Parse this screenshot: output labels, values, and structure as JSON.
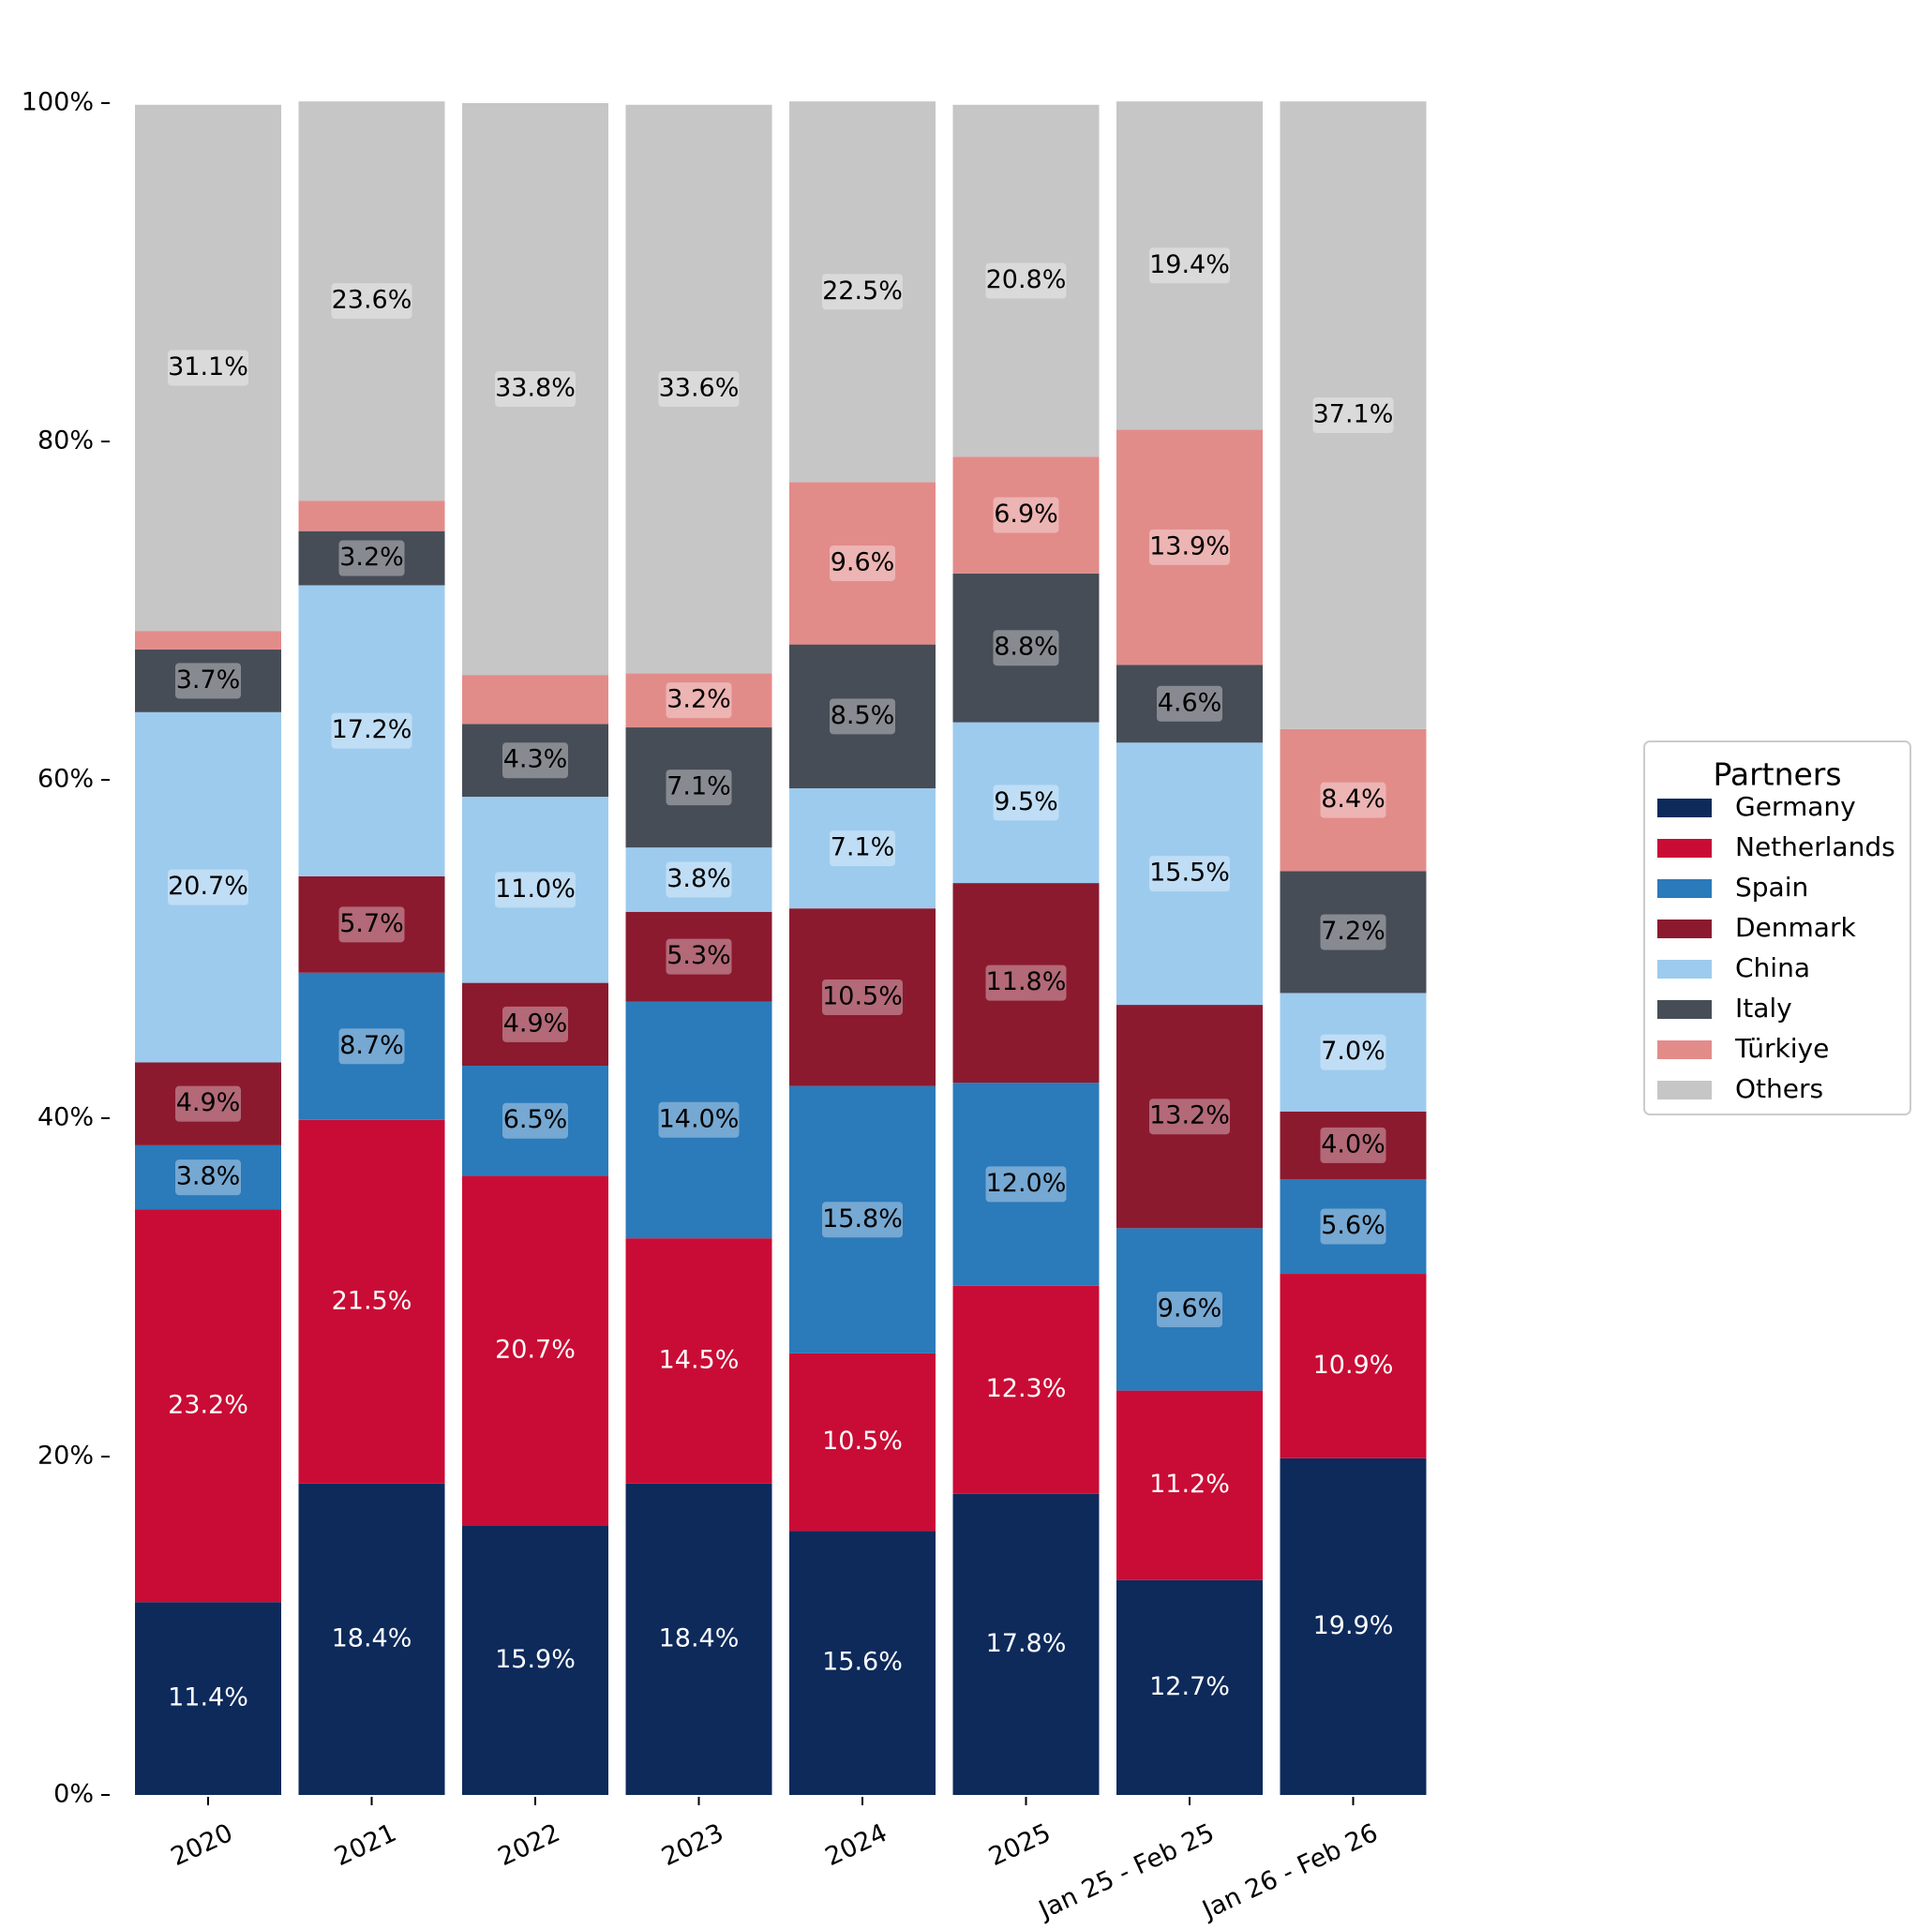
{
  "chart_data": {
    "type": "bar",
    "stacked": true,
    "categories": [
      "2020",
      "2021",
      "2022",
      "2023",
      "2024",
      "2025",
      "Jan 25 - Feb 25",
      "Jan 26 - Feb 26"
    ],
    "ylim": [
      0,
      100
    ],
    "y_ticks": [
      "0%",
      "20%",
      "40%",
      "60%",
      "80%",
      "100%"
    ],
    "y_tick_values": [
      0,
      20,
      40,
      60,
      80,
      100
    ],
    "legend": {
      "title": "Partners",
      "placement": "right"
    },
    "grid": false,
    "series": [
      {
        "name": "Germany",
        "color": "#0d2a5b",
        "label_color": "#ffffff",
        "label_bg": "",
        "values": [
          11.4,
          18.4,
          15.9,
          18.4,
          15.6,
          17.8,
          12.7,
          19.9
        ],
        "labels": [
          "11.4%",
          "18.4%",
          "15.9%",
          "18.4%",
          "15.6%",
          "17.8%",
          "12.7%",
          "19.9%"
        ]
      },
      {
        "name": "Netherlands",
        "color": "#c90c35",
        "label_color": "#ffffff",
        "label_bg": "",
        "values": [
          23.2,
          21.5,
          20.7,
          14.5,
          10.5,
          12.3,
          11.2,
          10.9
        ],
        "labels": [
          "23.2%",
          "21.5%",
          "20.7%",
          "14.5%",
          "10.5%",
          "12.3%",
          "11.2%",
          "10.9%"
        ]
      },
      {
        "name": "Spain",
        "color": "#2b7aba",
        "label_color": "#000000",
        "label_bg": "#ffffff",
        "values": [
          3.8,
          8.7,
          6.5,
          14.0,
          15.8,
          12.0,
          9.6,
          5.6
        ],
        "labels": [
          "3.8%",
          "8.7%",
          "6.5%",
          "14.0%",
          "15.8%",
          "12.0%",
          "9.6%",
          "5.6%"
        ]
      },
      {
        "name": "Denmark",
        "color": "#8b1a2f",
        "label_color": "#000000",
        "label_bg": "#ffffff",
        "values": [
          4.9,
          5.7,
          4.9,
          5.3,
          10.5,
          11.8,
          13.2,
          4.0
        ],
        "labels": [
          "4.9%",
          "5.7%",
          "4.9%",
          "5.3%",
          "10.5%",
          "11.8%",
          "13.2%",
          "4.0%"
        ]
      },
      {
        "name": "China",
        "color": "#9dcbee",
        "label_color": "#000000",
        "label_bg": "#ffffff",
        "values": [
          20.7,
          17.2,
          11.0,
          3.8,
          7.1,
          9.5,
          15.5,
          7.0
        ],
        "labels": [
          "20.7%",
          "17.2%",
          "11.0%",
          "3.8%",
          "7.1%",
          "9.5%",
          "15.5%",
          "7.0%"
        ]
      },
      {
        "name": "Italy",
        "color": "#474d56",
        "label_color": "#000000",
        "label_bg": "#ffffff",
        "values": [
          3.7,
          3.2,
          4.3,
          7.1,
          8.5,
          8.8,
          4.6,
          7.2
        ],
        "labels": [
          "3.7%",
          "3.2%",
          "4.3%",
          "7.1%",
          "8.5%",
          "8.8%",
          "4.6%",
          "7.2%"
        ]
      },
      {
        "name": "Türkiye",
        "color": "#e28c8a",
        "label_color": "#000000",
        "label_bg": "#ffffff",
        "values": [
          1.1,
          1.8,
          2.9,
          3.2,
          9.6,
          6.9,
          13.9,
          8.4
        ],
        "labels": [
          "",
          "",
          "",
          "3.2%",
          "9.6%",
          "6.9%",
          "13.9%",
          "8.4%"
        ]
      },
      {
        "name": "Others",
        "color": "#c6c6c6",
        "label_color": "#000000",
        "label_bg": "#ffffff",
        "values": [
          31.1,
          23.6,
          33.8,
          33.6,
          22.5,
          20.8,
          19.4,
          37.1
        ],
        "labels": [
          "31.1%",
          "23.6%",
          "33.8%",
          "33.6%",
          "22.5%",
          "20.8%",
          "19.4%",
          "37.1%"
        ]
      }
    ]
  }
}
